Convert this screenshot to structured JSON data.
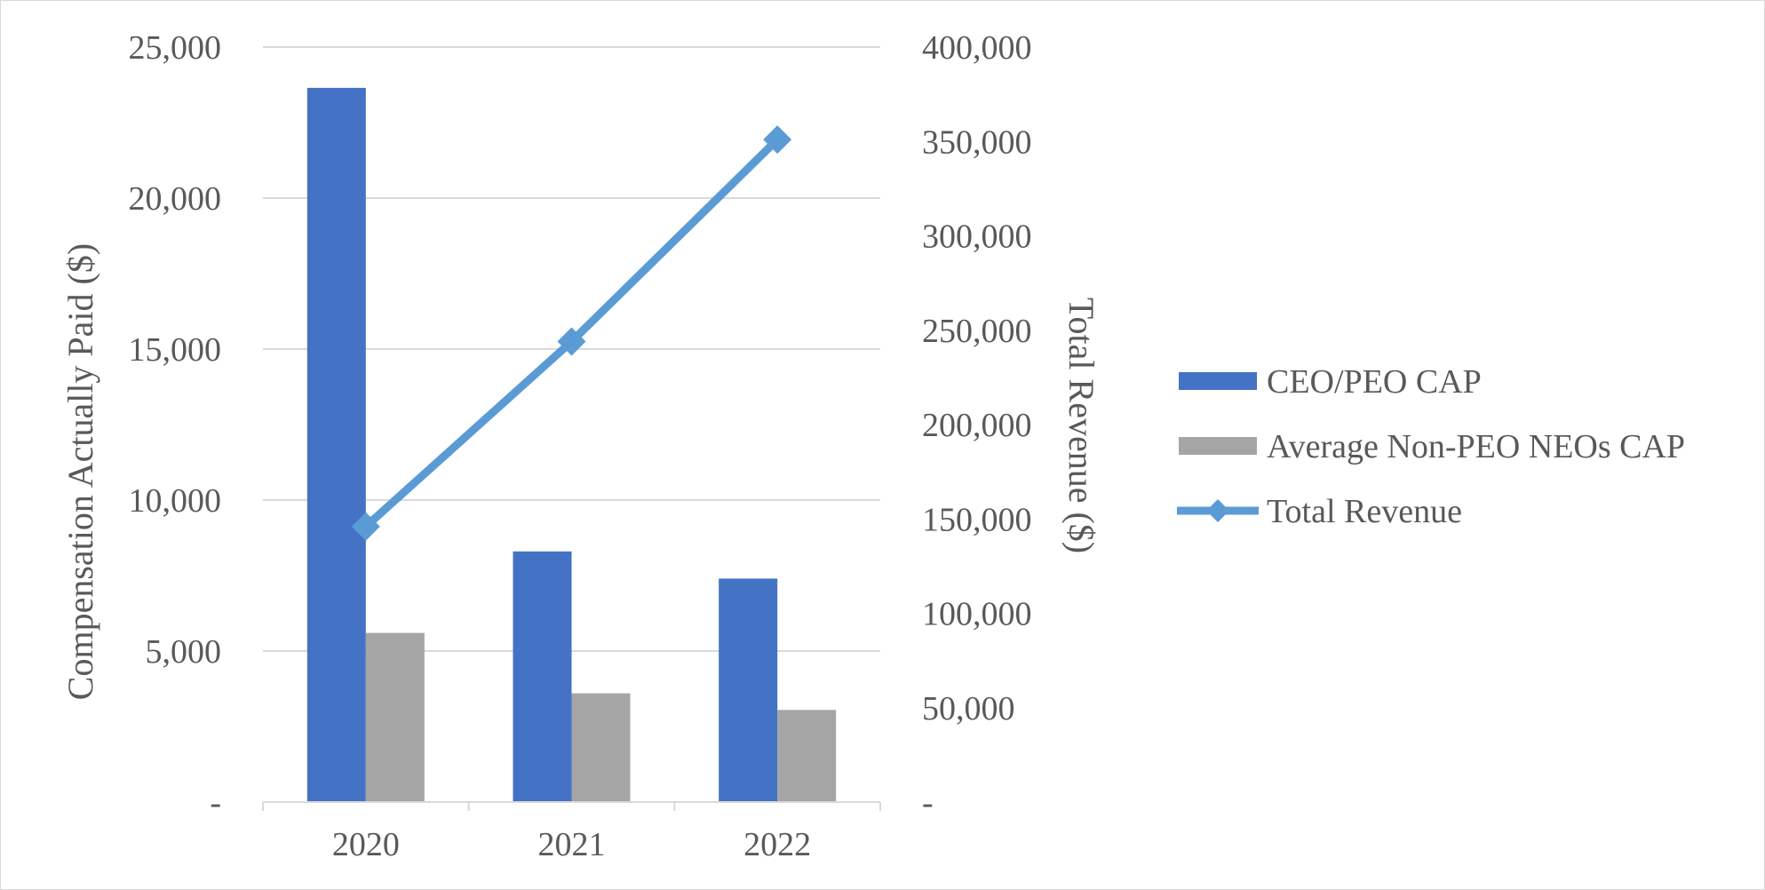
{
  "chart_data": {
    "type": "bar",
    "categories": [
      "2020",
      "2021",
      "2022"
    ],
    "series": [
      {
        "name": "CEO/PEO CAP",
        "type": "bar",
        "axis": "left",
        "color": "#4472c4",
        "values": [
          23650,
          8300,
          7400
        ]
      },
      {
        "name": "Average Non-PEO NEOs CAP",
        "type": "bar",
        "axis": "left",
        "color": "#a5a5a5",
        "values": [
          5600,
          3600,
          3050
        ]
      },
      {
        "name": "Total Revenue",
        "type": "line",
        "axis": "right",
        "color": "#5b9bd5",
        "marker": "diamond",
        "values": [
          146000,
          244000,
          351000
        ]
      }
    ],
    "ylabel": "Compensation Actually Paid ($)",
    "y2label": "Total Revenue ($)",
    "ylim": [
      0,
      25000
    ],
    "y2lim": [
      0,
      400000
    ],
    "yticks": [
      {
        "value": 0,
        "label": "-"
      },
      {
        "value": 5000,
        "label": "5,000"
      },
      {
        "value": 10000,
        "label": "10,000"
      },
      {
        "value": 15000,
        "label": "15,000"
      },
      {
        "value": 20000,
        "label": "20,000"
      },
      {
        "value": 25000,
        "label": "25,000"
      }
    ],
    "y2ticks": [
      {
        "value": 0,
        "label": "-"
      },
      {
        "value": 50000,
        "label": "50,000"
      },
      {
        "value": 100000,
        "label": "100,000"
      },
      {
        "value": 150000,
        "label": "150,000"
      },
      {
        "value": 200000,
        "label": "200,000"
      },
      {
        "value": 250000,
        "label": "250,000"
      },
      {
        "value": 300000,
        "label": "300,000"
      },
      {
        "value": 350000,
        "label": "350,000"
      },
      {
        "value": 400000,
        "label": "400,000"
      }
    ],
    "grid": true,
    "legend_position": "right"
  }
}
